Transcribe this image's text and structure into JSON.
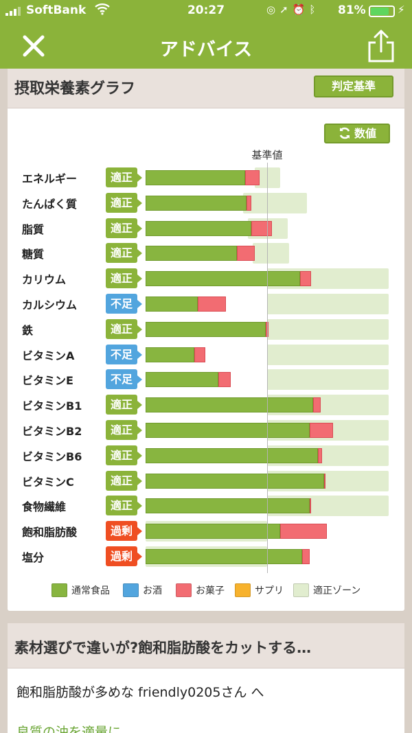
{
  "status_bar": {
    "carrier": "SoftBank",
    "time": "20:27",
    "battery": "81%",
    "battery_level": 0.81
  },
  "nav": {
    "title": "アドバイス"
  },
  "card": {
    "title": "摂取栄養素グラフ",
    "criteria_button": "判定基準",
    "values_button": "数値",
    "baseline_label": "基準値"
  },
  "nutrients": [
    {
      "name": "エネルギー",
      "status": "適正",
      "level": "ok",
      "normal": 0.82,
      "snack": 0.12,
      "zone": [
        0.9,
        1.11
      ]
    },
    {
      "name": "たんぱく質",
      "status": "適正",
      "level": "ok",
      "normal": 0.83,
      "snack": 0.04,
      "zone": [
        0.8,
        1.33
      ]
    },
    {
      "name": "脂質",
      "status": "適正",
      "level": "ok",
      "normal": 0.87,
      "snack": 0.17,
      "zone": [
        0.84,
        1.17
      ]
    },
    {
      "name": "糖質",
      "status": "適正",
      "level": "ok",
      "normal": 0.75,
      "snack": 0.15,
      "zone": [
        0.88,
        1.18
      ]
    },
    {
      "name": "カリウム",
      "status": "適正",
      "level": "ok",
      "normal": 1.27,
      "snack": 0.09,
      "zone": [
        1.0,
        2.0
      ]
    },
    {
      "name": "カルシウム",
      "status": "不足",
      "level": "short",
      "normal": 0.43,
      "snack": 0.23,
      "zone": [
        1.0,
        2.0
      ]
    },
    {
      "name": "鉄",
      "status": "適正",
      "level": "ok",
      "normal": 0.99,
      "snack": 0.02,
      "zone": [
        1.0,
        2.0
      ]
    },
    {
      "name": "ビタミンA",
      "status": "不足",
      "level": "short",
      "normal": 0.4,
      "snack": 0.09,
      "zone": [
        1.0,
        2.0
      ]
    },
    {
      "name": "ビタミンE",
      "status": "不足",
      "level": "short",
      "normal": 0.6,
      "snack": 0.1,
      "zone": [
        1.0,
        2.0
      ]
    },
    {
      "name": "ビタミンB1",
      "status": "適正",
      "level": "ok",
      "normal": 1.38,
      "snack": 0.06,
      "zone": [
        1.0,
        2.0
      ]
    },
    {
      "name": "ビタミンB2",
      "status": "適正",
      "level": "ok",
      "normal": 1.35,
      "snack": 0.19,
      "zone": [
        1.0,
        2.0
      ]
    },
    {
      "name": "ビタミンB6",
      "status": "適正",
      "level": "ok",
      "normal": 1.42,
      "snack": 0.03,
      "zone": [
        1.0,
        2.0
      ]
    },
    {
      "name": "ビタミンC",
      "status": "適正",
      "level": "ok",
      "normal": 1.47,
      "snack": 0.01,
      "zone": [
        1.0,
        2.0
      ]
    },
    {
      "name": "食物繊維",
      "status": "適正",
      "level": "ok",
      "normal": 1.35,
      "snack": 0.01,
      "zone": [
        1.0,
        2.0
      ]
    },
    {
      "name": "飽和脂肪酸",
      "status": "過剰",
      "level": "over",
      "normal": 1.11,
      "snack": 0.38,
      "zone": [
        0.0,
        1.0
      ]
    },
    {
      "name": "塩分",
      "status": "過剰",
      "level": "over",
      "normal": 1.29,
      "snack": 0.06,
      "zone": [
        0.0,
        1.0
      ]
    }
  ],
  "legend": [
    {
      "label": "通常食品",
      "color": "#88b540"
    },
    {
      "label": "お酒",
      "color": "#52a5de"
    },
    {
      "label": "お菓子",
      "color": "#f26c72"
    },
    {
      "label": "サプリ",
      "color": "#f7b22d"
    },
    {
      "label": "適正ゾーン",
      "color": "#e1edcf"
    }
  ],
  "advice": {
    "title": "素材選びで違いが?飽和脂肪酸をカットする…",
    "line1": "飽和脂肪酸が多めな friendly0205さん へ",
    "line2": "良質の油を適量に"
  }
}
